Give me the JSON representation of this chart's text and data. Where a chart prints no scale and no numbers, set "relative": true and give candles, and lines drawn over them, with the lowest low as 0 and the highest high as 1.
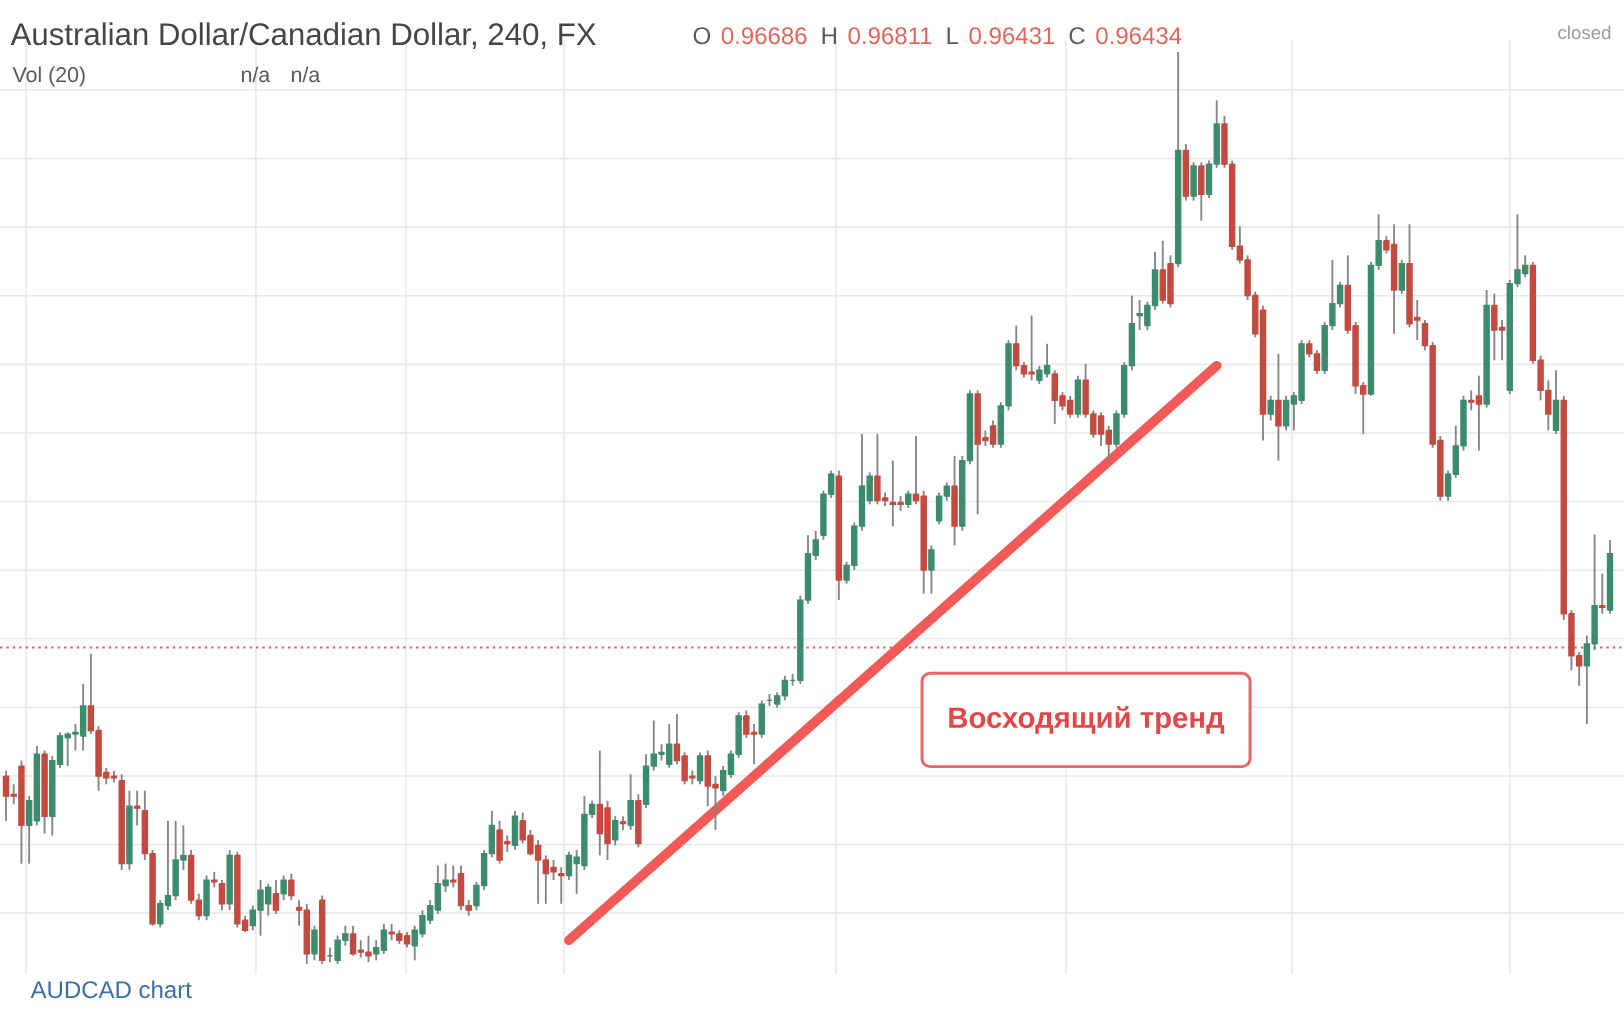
{
  "chart_data": {
    "type": "candlestick",
    "title": "Australian Dollar/Canadian Dollar, 240, FX",
    "relative": true,
    "grid": true,
    "categories": [
      null,
      null,
      null,
      null,
      null,
      null,
      null,
      null,
      null,
      null,
      null,
      null,
      null,
      null,
      null,
      null,
      null,
      null,
      null,
      null,
      null,
      null,
      null,
      null,
      null,
      null,
      null,
      null,
      null,
      null,
      null,
      null,
      null,
      null,
      null,
      null,
      null,
      null,
      null,
      null,
      null,
      null,
      null,
      null,
      null,
      null,
      null,
      null,
      null,
      null,
      null,
      null,
      null,
      null,
      null,
      null,
      null,
      null,
      null,
      null,
      null,
      null,
      null,
      null,
      null,
      null,
      null,
      null,
      null,
      null,
      null,
      null,
      null,
      null,
      null,
      null,
      null,
      null,
      null,
      null,
      null,
      null,
      null,
      null,
      null,
      null,
      null,
      null,
      null,
      null,
      null,
      null,
      null,
      null,
      null,
      null,
      null,
      null,
      null,
      null,
      null,
      null,
      null,
      null,
      null,
      null,
      null,
      null,
      null,
      null,
      null,
      null,
      null,
      null,
      null,
      null,
      null,
      null,
      null,
      null,
      null,
      null,
      null,
      null,
      null,
      null,
      null,
      null,
      null,
      null,
      null,
      null,
      null,
      null,
      null,
      null,
      null,
      null,
      null,
      null,
      null,
      null,
      null,
      null,
      null,
      null,
      null,
      null,
      null,
      null,
      null,
      null,
      null,
      null,
      null,
      null,
      null,
      null,
      null,
      null,
      null,
      null,
      null,
      null,
      null,
      null,
      null,
      null,
      null,
      null,
      null,
      null,
      null,
      null,
      null,
      null,
      null,
      null,
      null,
      null,
      null,
      null,
      null,
      null,
      null,
      null,
      null,
      null,
      null,
      null,
      null,
      null,
      null,
      null,
      null,
      null,
      null,
      null,
      null,
      null,
      null,
      null,
      null,
      null,
      null,
      null,
      null,
      null,
      null
    ],
    "ohlc": [
      [
        0.206,
        0.212,
        0.157,
        0.184
      ],
      [
        0.186,
        0.197,
        0.175,
        0.184
      ],
      [
        0.217,
        0.223,
        0.11,
        0.152
      ],
      [
        0.152,
        0.184,
        0.11,
        0.179
      ],
      [
        0.157,
        0.239,
        0.152,
        0.23
      ],
      [
        0.23,
        0.234,
        0.143,
        0.162
      ],
      [
        0.162,
        0.228,
        0.141,
        0.223
      ],
      [
        0.219,
        0.254,
        0.215,
        0.25
      ],
      [
        0.248,
        0.254,
        0.217,
        0.252
      ],
      [
        0.252,
        0.263,
        0.234,
        0.254
      ],
      [
        0.25,
        0.307,
        0.234,
        0.283
      ],
      [
        0.283,
        0.34,
        0.252,
        0.256
      ],
      [
        0.256,
        0.261,
        0.19,
        0.206
      ],
      [
        0.21,
        0.215,
        0.197,
        0.204
      ],
      [
        0.206,
        0.212,
        0.199,
        0.204
      ],
      [
        0.201,
        0.208,
        0.103,
        0.11
      ],
      [
        0.11,
        0.19,
        0.103,
        0.173
      ],
      [
        0.173,
        0.19,
        0.152,
        0.171
      ],
      [
        0.168,
        0.19,
        0.114,
        0.121
      ],
      [
        0.121,
        0.125,
        0.042,
        0.044
      ],
      [
        0.044,
        0.07,
        0.04,
        0.066
      ],
      [
        0.064,
        0.157,
        0.059,
        0.075
      ],
      [
        0.075,
        0.157,
        0.07,
        0.114
      ],
      [
        0.114,
        0.152,
        0.103,
        0.119
      ],
      [
        0.119,
        0.125,
        0.066,
        0.07
      ],
      [
        0.07,
        0.077,
        0.048,
        0.053
      ],
      [
        0.053,
        0.097,
        0.048,
        0.092
      ],
      [
        0.092,
        0.101,
        0.084,
        0.09
      ],
      [
        0.088,
        0.092,
        0.059,
        0.066
      ],
      [
        0.066,
        0.125,
        0.059,
        0.119
      ],
      [
        0.119,
        0.123,
        0.04,
        0.044
      ],
      [
        0.048,
        0.053,
        0.035,
        0.037
      ],
      [
        0.042,
        0.064,
        0.037,
        0.059
      ],
      [
        0.059,
        0.092,
        0.031,
        0.081
      ],
      [
        0.066,
        0.088,
        0.053,
        0.084
      ],
      [
        0.077,
        0.092,
        0.055,
        0.059
      ],
      [
        0.077,
        0.097,
        0.07,
        0.092
      ],
      [
        0.092,
        0.099,
        0.07,
        0.075
      ],
      [
        0.062,
        0.07,
        0.042,
        0.059
      ],
      [
        0.059,
        0.066,
        0.0,
        0.011
      ],
      [
        0.011,
        0.042,
        0.004,
        0.037
      ],
      [
        0.07,
        0.075,
        0.0,
        0.004
      ],
      [
        0.009,
        0.018,
        0.002,
        0.009
      ],
      [
        0.004,
        0.031,
        0.0,
        0.026
      ],
      [
        0.026,
        0.042,
        0.02,
        0.033
      ],
      [
        0.033,
        0.042,
        0.009,
        0.011
      ],
      [
        0.015,
        0.026,
        0.007,
        0.013
      ],
      [
        0.013,
        0.031,
        0.002,
        0.009
      ],
      [
        0.011,
        0.026,
        0.004,
        0.018
      ],
      [
        0.015,
        0.044,
        0.011,
        0.037
      ],
      [
        0.035,
        0.044,
        0.026,
        0.033
      ],
      [
        0.033,
        0.037,
        0.022,
        0.026
      ],
      [
        0.031,
        0.035,
        0.018,
        0.022
      ],
      [
        0.02,
        0.042,
        0.004,
        0.037
      ],
      [
        0.033,
        0.059,
        0.029,
        0.053
      ],
      [
        0.048,
        0.07,
        0.044,
        0.064
      ],
      [
        0.059,
        0.108,
        0.055,
        0.088
      ],
      [
        0.086,
        0.11,
        0.079,
        0.092
      ],
      [
        0.092,
        0.108,
        0.084,
        0.09
      ],
      [
        0.099,
        0.108,
        0.059,
        0.064
      ],
      [
        0.064,
        0.07,
        0.053,
        0.059
      ],
      [
        0.064,
        0.09,
        0.059,
        0.086
      ],
      [
        0.086,
        0.125,
        0.081,
        0.121
      ],
      [
        0.121,
        0.168,
        0.117,
        0.152
      ],
      [
        0.147,
        0.157,
        0.11,
        0.114
      ],
      [
        0.134,
        0.141,
        0.123,
        0.132
      ],
      [
        0.13,
        0.168,
        0.125,
        0.162
      ],
      [
        0.157,
        0.166,
        0.132,
        0.136
      ],
      [
        0.141,
        0.147,
        0.119,
        0.121
      ],
      [
        0.13,
        0.136,
        0.066,
        0.114
      ],
      [
        0.114,
        0.119,
        0.066,
        0.099
      ],
      [
        0.106,
        0.114,
        0.092,
        0.101
      ],
      [
        0.099,
        0.106,
        0.066,
        0.097
      ],
      [
        0.097,
        0.123,
        0.092,
        0.119
      ],
      [
        0.11,
        0.125,
        0.077,
        0.117
      ],
      [
        0.108,
        0.184,
        0.103,
        0.164
      ],
      [
        0.164,
        0.179,
        0.16,
        0.175
      ],
      [
        0.175,
        0.234,
        0.119,
        0.143
      ],
      [
        0.171,
        0.179,
        0.114,
        0.132
      ],
      [
        0.136,
        0.162,
        0.13,
        0.157
      ],
      [
        0.156,
        0.162,
        0.147,
        0.154
      ],
      [
        0.152,
        0.208,
        0.147,
        0.179
      ],
      [
        0.179,
        0.186,
        0.128,
        0.132
      ],
      [
        0.175,
        0.23,
        0.171,
        0.217
      ],
      [
        0.217,
        0.267,
        0.212,
        0.23
      ],
      [
        0.23,
        0.241,
        0.223,
        0.232
      ],
      [
        0.219,
        0.263,
        0.215,
        0.241
      ],
      [
        0.241,
        0.274,
        0.219,
        0.223
      ],
      [
        0.228,
        0.232,
        0.197,
        0.201
      ],
      [
        0.206,
        0.212,
        0.197,
        0.204
      ],
      [
        0.201,
        0.232,
        0.197,
        0.228
      ],
      [
        0.228,
        0.234,
        0.173,
        0.195
      ],
      [
        0.197,
        0.206,
        0.147,
        0.193
      ],
      [
        0.19,
        0.217,
        0.184,
        0.212
      ],
      [
        0.208,
        0.234,
        0.204,
        0.23
      ],
      [
        0.23,
        0.276,
        0.226,
        0.272
      ],
      [
        0.272,
        0.278,
        0.248,
        0.252
      ],
      [
        0.254,
        0.263,
        0.219,
        0.252
      ],
      [
        0.252,
        0.289,
        0.248,
        0.285
      ],
      [
        0.289,
        0.296,
        0.283,
        0.289
      ],
      [
        0.285,
        0.298,
        0.281,
        0.294
      ],
      [
        0.294,
        0.316,
        0.289,
        0.311
      ],
      [
        0.311,
        0.318,
        0.305,
        0.311
      ],
      [
        0.311,
        0.404,
        0.307,
        0.399
      ],
      [
        0.399,
        0.47,
        0.395,
        0.45
      ],
      [
        0.448,
        0.475,
        0.443,
        0.465
      ],
      [
        0.47,
        0.519,
        0.465,
        0.515
      ],
      [
        0.515,
        0.541,
        0.511,
        0.537
      ],
      [
        0.535,
        0.541,
        0.399,
        0.421
      ],
      [
        0.421,
        0.441,
        0.417,
        0.437
      ],
      [
        0.437,
        0.484,
        0.432,
        0.48
      ],
      [
        0.48,
        0.581,
        0.475,
        0.524
      ],
      [
        0.508,
        0.539,
        0.504,
        0.535
      ],
      [
        0.535,
        0.581,
        0.504,
        0.508
      ],
      [
        0.511,
        0.517,
        0.502,
        0.508
      ],
      [
        0.506,
        0.552,
        0.48,
        0.504
      ],
      [
        0.506,
        0.513,
        0.497,
        0.504
      ],
      [
        0.504,
        0.519,
        0.5,
        0.515
      ],
      [
        0.515,
        0.579,
        0.504,
        0.508
      ],
      [
        0.513,
        0.519,
        0.406,
        0.432
      ],
      [
        0.432,
        0.459,
        0.406,
        0.454
      ],
      [
        0.486,
        0.517,
        0.482,
        0.513
      ],
      [
        0.513,
        0.528,
        0.508,
        0.524
      ],
      [
        0.524,
        0.557,
        0.459,
        0.48
      ],
      [
        0.48,
        0.557,
        0.475,
        0.552
      ],
      [
        0.552,
        0.629,
        0.548,
        0.625
      ],
      [
        0.625,
        0.629,
        0.493,
        0.57
      ],
      [
        0.577,
        0.585,
        0.568,
        0.574
      ],
      [
        0.59,
        0.596,
        0.566,
        0.57
      ],
      [
        0.57,
        0.616,
        0.566,
        0.612
      ],
      [
        0.612,
        0.684,
        0.607,
        0.68
      ],
      [
        0.68,
        0.7,
        0.651,
        0.656
      ],
      [
        0.656,
        0.66,
        0.643,
        0.647
      ],
      [
        0.649,
        0.711,
        0.64,
        0.647
      ],
      [
        0.64,
        0.656,
        0.636,
        0.651
      ],
      [
        0.647,
        0.68,
        0.643,
        0.656
      ],
      [
        0.647,
        0.651,
        0.592,
        0.618
      ],
      [
        0.623,
        0.627,
        0.607,
        0.612
      ],
      [
        0.618,
        0.623,
        0.599,
        0.603
      ],
      [
        0.603,
        0.645,
        0.599,
        0.64
      ],
      [
        0.64,
        0.658,
        0.599,
        0.603
      ],
      [
        0.603,
        0.607,
        0.577,
        0.581
      ],
      [
        0.601,
        0.605,
        0.568,
        0.581
      ],
      [
        0.585,
        0.59,
        0.552,
        0.57
      ],
      [
        0.57,
        0.607,
        0.566,
        0.603
      ],
      [
        0.603,
        0.66,
        0.599,
        0.656
      ],
      [
        0.656,
        0.733,
        0.651,
        0.702
      ],
      [
        0.711,
        0.728,
        0.695,
        0.713
      ],
      [
        0.7,
        0.726,
        0.695,
        0.722
      ],
      [
        0.722,
        0.781,
        0.717,
        0.761
      ],
      [
        0.761,
        0.793,
        0.724,
        0.728
      ],
      [
        0.768,
        0.777,
        0.72,
        0.724
      ],
      [
        0.768,
        1.0,
        0.764,
        0.892
      ],
      [
        0.892,
        0.899,
        0.837,
        0.842
      ],
      [
        0.842,
        0.879,
        0.837,
        0.875
      ],
      [
        0.875,
        0.879,
        0.815,
        0.844
      ],
      [
        0.844,
        0.881,
        0.84,
        0.877
      ],
      [
        0.877,
        0.947,
        0.873,
        0.921
      ],
      [
        0.921,
        0.93,
        0.873,
        0.877
      ],
      [
        0.877,
        0.881,
        0.783,
        0.787
      ],
      [
        0.787,
        0.809,
        0.768,
        0.772
      ],
      [
        0.772,
        0.777,
        0.728,
        0.733
      ],
      [
        0.733,
        0.737,
        0.687,
        0.691
      ],
      [
        0.717,
        0.722,
        0.574,
        0.603
      ],
      [
        0.603,
        0.623,
        0.596,
        0.618
      ],
      [
        0.618,
        0.669,
        0.552,
        0.59
      ],
      [
        0.59,
        0.623,
        0.585,
        0.618
      ],
      [
        0.614,
        0.627,
        0.585,
        0.623
      ],
      [
        0.618,
        0.684,
        0.614,
        0.68
      ],
      [
        0.68,
        0.684,
        0.665,
        0.669
      ],
      [
        0.669,
        0.673,
        0.647,
        0.651
      ],
      [
        0.651,
        0.704,
        0.647,
        0.7
      ],
      [
        0.7,
        0.772,
        0.695,
        0.724
      ],
      [
        0.724,
        0.748,
        0.72,
        0.744
      ],
      [
        0.744,
        0.777,
        0.691,
        0.695
      ],
      [
        0.7,
        0.704,
        0.625,
        0.634
      ],
      [
        0.634,
        0.638,
        0.581,
        0.625
      ],
      [
        0.625,
        0.77,
        0.623,
        0.766
      ],
      [
        0.766,
        0.822,
        0.761,
        0.793
      ],
      [
        0.793,
        0.798,
        0.779,
        0.783
      ],
      [
        0.789,
        0.811,
        0.691,
        0.739
      ],
      [
        0.739,
        0.772,
        0.735,
        0.768
      ],
      [
        0.768,
        0.811,
        0.698,
        0.702
      ],
      [
        0.709,
        0.728,
        0.684,
        0.706
      ],
      [
        0.702,
        0.706,
        0.673,
        0.678
      ],
      [
        0.678,
        0.682,
        0.566,
        0.57
      ],
      [
        0.574,
        0.579,
        0.508,
        0.513
      ],
      [
        0.513,
        0.541,
        0.508,
        0.537
      ],
      [
        0.537,
        0.59,
        0.533,
        0.568
      ],
      [
        0.568,
        0.623,
        0.563,
        0.618
      ],
      [
        0.618,
        0.629,
        0.607,
        0.616
      ],
      [
        0.623,
        0.645,
        0.563,
        0.614
      ],
      [
        0.614,
        0.739,
        0.61,
        0.722
      ],
      [
        0.722,
        0.735,
        0.662,
        0.695
      ],
      [
        0.698,
        0.706,
        0.662,
        0.695
      ],
      [
        0.629,
        0.75,
        0.625,
        0.746
      ],
      [
        0.746,
        0.822,
        0.742,
        0.761
      ],
      [
        0.757,
        0.777,
        0.753,
        0.766
      ],
      [
        0.766,
        0.77,
        0.658,
        0.662
      ],
      [
        0.662,
        0.667,
        0.618,
        0.629
      ],
      [
        0.629,
        0.64,
        0.585,
        0.603
      ],
      [
        0.585,
        0.651,
        0.581,
        0.618
      ],
      [
        0.618,
        0.623,
        0.377,
        0.384
      ],
      [
        0.384,
        0.388,
        0.322,
        0.338
      ],
      [
        0.338,
        0.342,
        0.305,
        0.327
      ],
      [
        0.327,
        0.36,
        0.263,
        0.351
      ],
      [
        0.351,
        0.471,
        0.344,
        0.393
      ],
      [
        0.393,
        0.428,
        0.384,
        0.391
      ],
      [
        0.388,
        0.465,
        0.384,
        0.45
      ]
    ],
    "series": [
      {
        "type": "line",
        "color": "#f25a57",
        "values": [
          null,
          null,
          null,
          null,
          null,
          null,
          null,
          null,
          null,
          null,
          null,
          null,
          null,
          null,
          null,
          null,
          null,
          null,
          null,
          null,
          null,
          null,
          null,
          null,
          null,
          null,
          null,
          null,
          null,
          null,
          null,
          null,
          null,
          null,
          null,
          null,
          null,
          null,
          null,
          null,
          null,
          null,
          null,
          null,
          null,
          null,
          null,
          null,
          null,
          null,
          null,
          null,
          null,
          null,
          null,
          null,
          null,
          null,
          null,
          null,
          null,
          null,
          null,
          null,
          null,
          null,
          null,
          null,
          null,
          null,
          null,
          null,
          null,
          0.026,
          null,
          null,
          null,
          null,
          null,
          null,
          null,
          null,
          null,
          null,
          null,
          null,
          null,
          null,
          null,
          null,
          null,
          null,
          null,
          null,
          null,
          null,
          null,
          null,
          null,
          null,
          null,
          null,
          null,
          null,
          null,
          null,
          null,
          null,
          null,
          null,
          null,
          null,
          null,
          null,
          null,
          null,
          null,
          null,
          null,
          null,
          null,
          null,
          null,
          null,
          null,
          null,
          null,
          null,
          null,
          null,
          null,
          null,
          null,
          null,
          null,
          null,
          null,
          null,
          null,
          null,
          null,
          null,
          null,
          null,
          null,
          null,
          null,
          null,
          null,
          null,
          null,
          null,
          null,
          null,
          null,
          null,
          null,
          0.656,
          null,
          null,
          null,
          null,
          null,
          null,
          null,
          null,
          null,
          null,
          null,
          null,
          null,
          null,
          null,
          null,
          null,
          null,
          null,
          null,
          null,
          null,
          null,
          null,
          null,
          null,
          null,
          null,
          null,
          null,
          null,
          null,
          null,
          null,
          null,
          null,
          null,
          null,
          null,
          null,
          null,
          null,
          null,
          null,
          null,
          null,
          null,
          null,
          null,
          null,
          null
        ]
      }
    ],
    "ref_lines": [
      {
        "axis": "y",
        "value": 0.347,
        "color": "#e0605a",
        "line_style": "dotted"
      }
    ],
    "annotations": [
      "O",
      "0.96686",
      "H",
      "0.96811",
      "L",
      "0.96431",
      "C",
      "0.96434",
      "Vol (20)",
      "n/a",
      "n/a",
      "closed",
      "Восходящий тренд",
      "AUDCAD chart"
    ]
  }
}
